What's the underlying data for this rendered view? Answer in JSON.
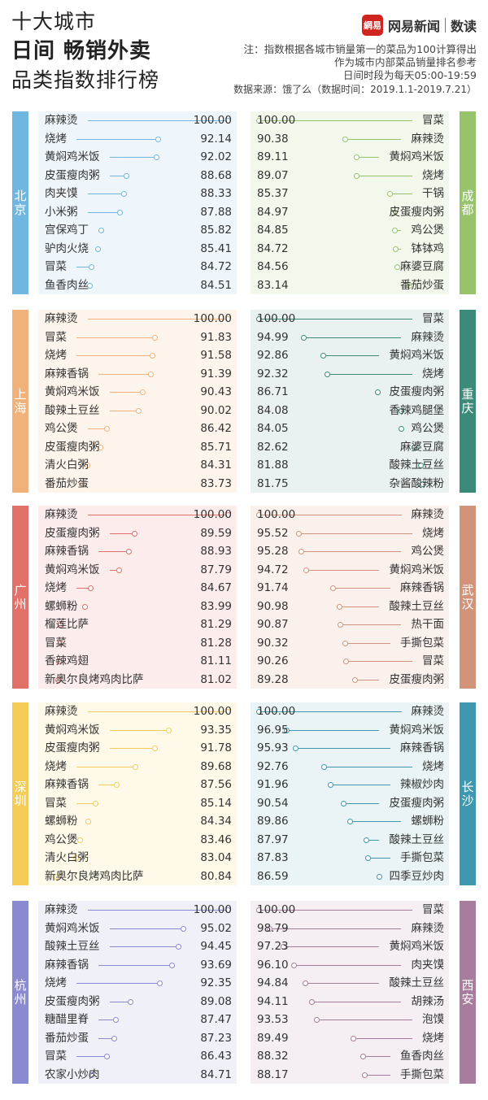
{
  "header": {
    "title_line1": "十大城市",
    "title_line2": "日间 畅销外卖",
    "title_line3": "品类指数排行榜",
    "brand_logo": "網易",
    "brand_name": "网易新闻",
    "brand_sub": "数读",
    "note_line1": "注：指数根据各城市销量第一的菜品为100计算得出",
    "note_line2": "作为城市内部菜品销量排名参考",
    "note_line3": "日间时段为每天05:00-19:59",
    "source": "数据来源：饿了么（数据时间：2019.1.1-2019.7.21）"
  },
  "chart_data": {
    "type": "bar",
    "title": "十大城市日间畅销外卖品类指数排行榜",
    "xlim": [
      0,
      100
    ],
    "sections": [
      {
        "left": {
          "city": "北京",
          "color": "#6fb6e0",
          "bg": "#eef6fb",
          "categories": [
            "麻辣烫",
            "烧烤",
            "黄焖鸡米饭",
            "皮蛋瘦肉粥",
            "肉夹馍",
            "小米粥",
            "宫保鸡丁",
            "驴肉火烧",
            "冒菜",
            "鱼香肉丝"
          ],
          "values": [
            100.0,
            92.14,
            92.02,
            88.68,
            88.33,
            87.88,
            85.82,
            85.41,
            84.72,
            84.51
          ]
        },
        "right": {
          "city": "成都",
          "color": "#97c36d",
          "bg": "#f2f8ec",
          "categories": [
            "冒菜",
            "麻辣烫",
            "黄焖鸡米饭",
            "烧烤",
            "干锅",
            "皮蛋瘦肉粥",
            "鸡公煲",
            "钵钵鸡",
            "麻婆豆腐",
            "番茄炒蛋"
          ],
          "values": [
            100.0,
            90.38,
            89.11,
            89.07,
            85.37,
            84.97,
            84.85,
            84.72,
            84.56,
            83.14
          ]
        }
      },
      {
        "left": {
          "city": "上海",
          "color": "#f0b27a",
          "bg": "#fdf4ec",
          "categories": [
            "麻辣烫",
            "冒菜",
            "烧烤",
            "麻辣香锅",
            "黄焖鸡米饭",
            "酸辣土豆丝",
            "鸡公煲",
            "皮蛋瘦肉粥",
            "清火白粥",
            "番茄炒蛋"
          ],
          "values": [
            100.0,
            91.83,
            91.58,
            91.39,
            90.43,
            90.02,
            86.42,
            85.71,
            84.31,
            83.73
          ]
        },
        "right": {
          "city": "重庆",
          "color": "#3c8a78",
          "bg": "#e9f2f0",
          "categories": [
            "冒菜",
            "麻辣烫",
            "黄焖鸡米饭",
            "烧烤",
            "皮蛋瘦肉粥",
            "香辣鸡腿堡",
            "鸡公煲",
            "麻婆豆腐",
            "酸辣土豆丝",
            "杂酱酸辣粉"
          ],
          "values": [
            100.0,
            94.99,
            92.86,
            92.32,
            86.71,
            84.08,
            84.05,
            82.62,
            81.88,
            81.75
          ]
        }
      },
      {
        "left": {
          "city": "广州",
          "color": "#e07068",
          "bg": "#fcedec",
          "categories": [
            "麻辣烫",
            "皮蛋瘦肉粥",
            "麻辣香锅",
            "黄焖鸡米饭",
            "烧烤",
            "螺蛳粉",
            "榴莲比萨",
            "冒菜",
            "香辣鸡翅",
            "新奥尔良烤鸡肉比萨"
          ],
          "values": [
            100.0,
            89.59,
            88.93,
            87.79,
            84.67,
            83.99,
            81.29,
            81.28,
            81.11,
            81.02
          ]
        },
        "right": {
          "city": "武汉",
          "color": "#d1937a",
          "bg": "#fbf1ec",
          "categories": [
            "麻辣烫",
            "烧烤",
            "鸡公煲",
            "黄焖鸡米饭",
            "麻辣香锅",
            "酸辣土豆丝",
            "热干面",
            "手撕包菜",
            "冒菜",
            "皮蛋瘦肉粥"
          ],
          "values": [
            100.0,
            95.52,
            95.28,
            94.72,
            91.74,
            90.98,
            90.87,
            90.32,
            90.26,
            89.28
          ]
        }
      },
      {
        "left": {
          "city": "深圳",
          "color": "#f5cc55",
          "bg": "#fef9e8",
          "categories": [
            "麻辣烫",
            "黄焖鸡米饭",
            "皮蛋瘦肉粥",
            "烧烤",
            "麻辣香锅",
            "冒菜",
            "螺蛳粉",
            "鸡公煲",
            "清火白粥",
            "新奥尔良烤鸡肉比萨"
          ],
          "values": [
            100.0,
            93.35,
            91.78,
            89.68,
            87.56,
            85.14,
            84.34,
            83.46,
            83.04,
            80.84
          ]
        },
        "right": {
          "city": "长沙",
          "color": "#3e98b0",
          "bg": "#eaf4f7",
          "categories": [
            "麻辣烫",
            "黄焖鸡米饭",
            "麻辣香锅",
            "烧烤",
            "辣椒炒肉",
            "皮蛋瘦肉粥",
            "螺蛳粉",
            "酸辣土豆丝",
            "手撕包菜",
            "四季豆炒肉"
          ],
          "values": [
            100.0,
            96.95,
            95.93,
            92.76,
            91.96,
            90.54,
            89.86,
            87.97,
            87.83,
            86.59
          ]
        }
      },
      {
        "left": {
          "city": "杭州",
          "color": "#8a8ad0",
          "bg": "#f0f0f9",
          "categories": [
            "麻辣烫",
            "黄焖鸡米饭",
            "酸辣土豆丝",
            "麻辣香锅",
            "烧烤",
            "皮蛋瘦肉粥",
            "糖醋里脊",
            "番茄炒蛋",
            "冒菜",
            "农家小炒肉"
          ],
          "values": [
            100.0,
            95.02,
            94.45,
            93.69,
            92.35,
            89.08,
            87.47,
            87.23,
            86.43,
            84.71
          ]
        },
        "right": {
          "city": "西安",
          "color": "#a77c9c",
          "bg": "#f5eff4",
          "categories": [
            "冒菜",
            "麻辣烫",
            "黄焖鸡米饭",
            "肉夹馍",
            "酸辣土豆丝",
            "胡辣汤",
            "泡馍",
            "烧烤",
            "鱼香肉丝",
            "手撕包菜"
          ],
          "values": [
            100.0,
            98.79,
            97.23,
            96.1,
            94.84,
            94.11,
            93.53,
            89.49,
            88.32,
            88.17
          ]
        }
      }
    ]
  }
}
